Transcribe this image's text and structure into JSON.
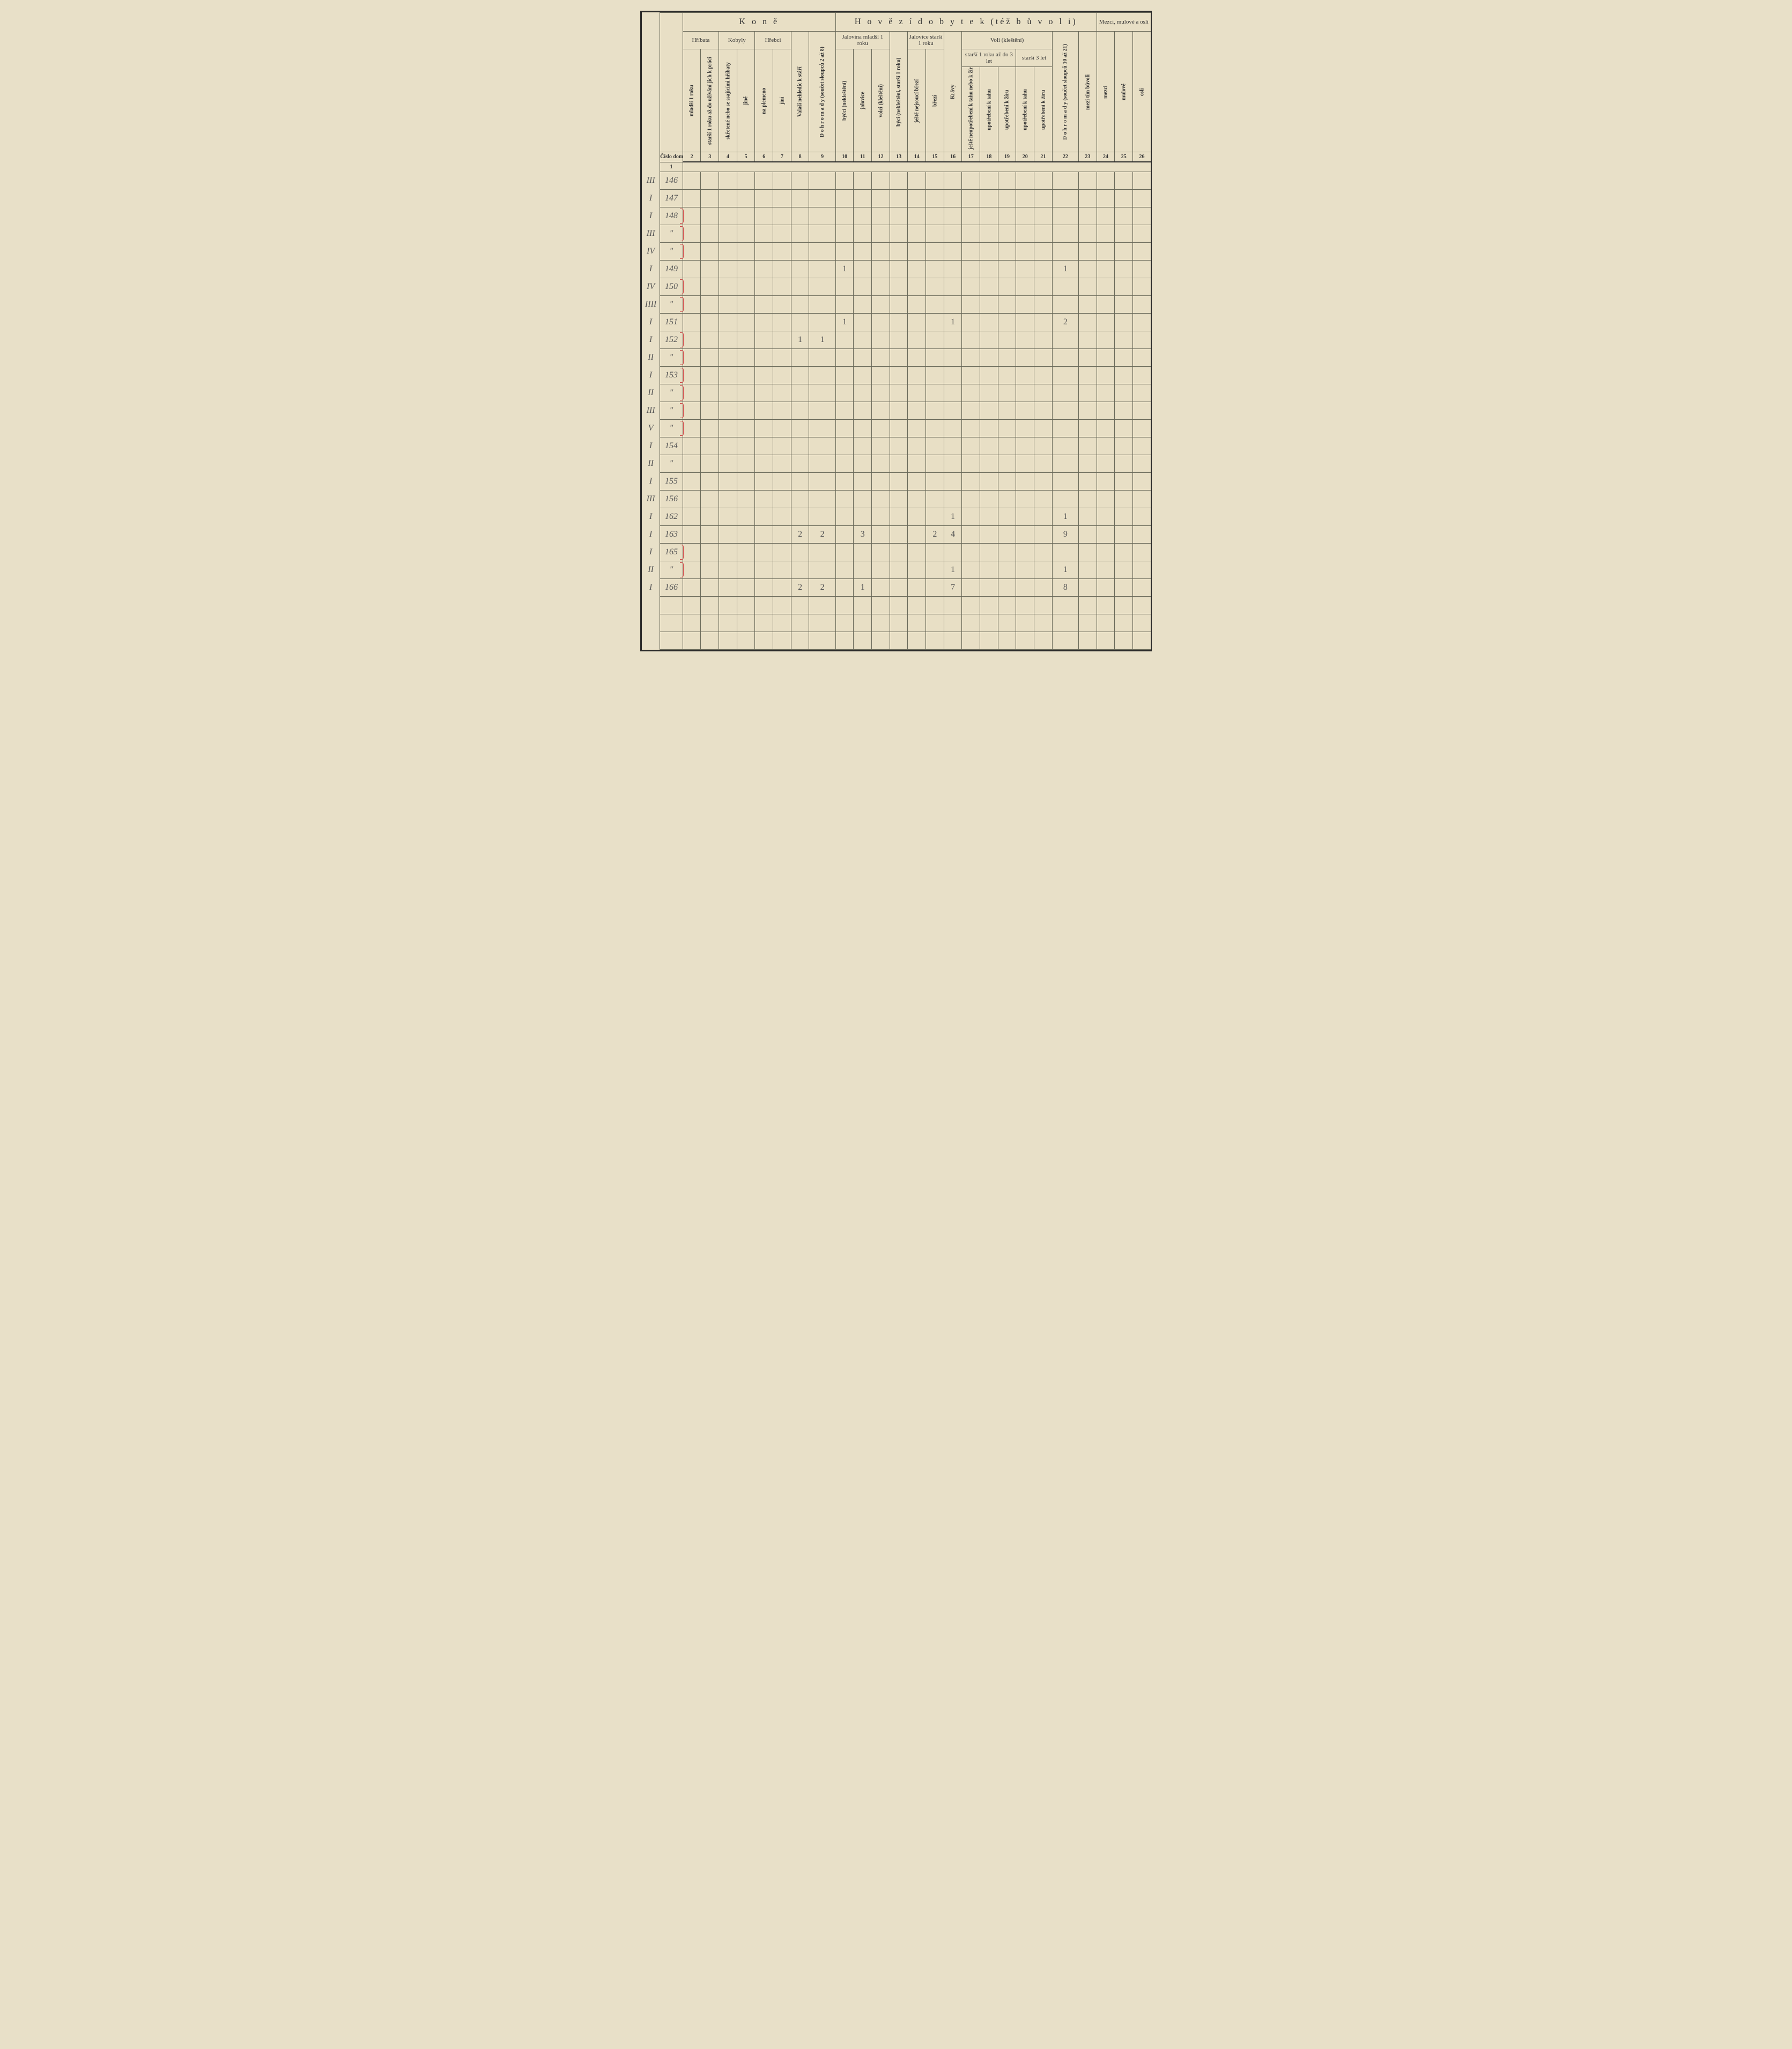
{
  "headers": {
    "section_kone": "K o n ě",
    "section_hovezi": "H o v ě z í   d o b y t e k   (též  b ů v o l i)",
    "section_mezci": "Mezci, mulové a osli",
    "hribata": "Hříbata",
    "kobyly": "Kobyly",
    "hrebci": "Hřebci",
    "jalovina": "Jalovina mladší 1 roku",
    "jalovice": "Jalovice starší 1 roku",
    "voli": "Voli (kleštění)",
    "voli_1_3": "starší 1 roku až do 3 let",
    "voli_3": "starší 3 let"
  },
  "col_labels": {
    "c1": "Číslo domu",
    "c2": "mladší 1 roku",
    "c3": "starší 1 roku až do užívání jich k práci",
    "c4": "skřetené nebo se ssajícími hříbaty",
    "c5": "jiné",
    "c6": "na plemeno",
    "c7": "jiní",
    "c8": "Valaši nehledíc k stáří",
    "c9": "D o h r o m a d y (součet sloupců 2 až 8)",
    "c10": "býčci (nekleštění)",
    "c11": "jalovice",
    "c12": "volci (kleštění)",
    "c13": "býci (nekleštění, starší 1 roku)",
    "c14": "ještě nejsoucí březí",
    "c15": "březí",
    "c16": "Krávy",
    "c17": "ještě neupotřebení k tahu nebo k žíru",
    "c18": "upotřebení k tahu",
    "c19": "upotřebení k žíru",
    "c20": "upotřebení k tahu",
    "c21": "upotřebení k žíru",
    "c22": "D o h r o m a d y (součet sloupců 10 až 21)",
    "c23": "mezi tím bůvoli",
    "c24": "mezci",
    "c25": "mulové",
    "c26": "osli"
  },
  "col_numbers": [
    "1",
    "2",
    "3",
    "4",
    "5",
    "6",
    "7",
    "8",
    "9",
    "10",
    "11",
    "12",
    "13",
    "14",
    "15",
    "16",
    "17",
    "18",
    "19",
    "20",
    "21",
    "22",
    "23",
    "24",
    "25",
    "26"
  ],
  "rows": [
    {
      "m": "III",
      "h": "146",
      "red": true
    },
    {
      "m": "I",
      "h": "147"
    },
    {
      "m": "I",
      "h": "148",
      "brace": true
    },
    {
      "m": "III",
      "h": "\"",
      "brace": true
    },
    {
      "m": "IV",
      "h": "\"",
      "brace": true
    },
    {
      "m": "I",
      "h": "149",
      "c10": "1",
      "c22": "1"
    },
    {
      "m": "IV",
      "h": "150",
      "brace": true
    },
    {
      "m": "IIII",
      "h": "\"",
      "brace": true
    },
    {
      "m": "I",
      "h": "151",
      "c10": "1",
      "c16": "1",
      "c22": "2"
    },
    {
      "m": "I",
      "h": "152",
      "c8": "1",
      "c9": "1",
      "brace": true
    },
    {
      "m": "II",
      "h": "\"",
      "brace": true
    },
    {
      "m": "I",
      "h": "153",
      "brace": true
    },
    {
      "m": "II",
      "h": "\"",
      "brace": true
    },
    {
      "m": "III",
      "h": "\"",
      "brace": true
    },
    {
      "m": "V",
      "h": "\"",
      "brace": true
    },
    {
      "m": "I",
      "h": "154",
      "red": true
    },
    {
      "m": "II",
      "h": "\""
    },
    {
      "m": "I",
      "h": "155"
    },
    {
      "m": "III",
      "h": "156"
    },
    {
      "m": "I",
      "h": "162",
      "c16": "1",
      "c22": "1"
    },
    {
      "m": "I",
      "h": "163",
      "c8": "2",
      "c9": "2",
      "c11": "3",
      "c15": "2",
      "c16": "4",
      "c22": "9"
    },
    {
      "m": "I",
      "h": "165",
      "brace": true
    },
    {
      "m": "II",
      "h": "\"",
      "c16": "1",
      "c22": "1",
      "brace": true
    },
    {
      "m": "I",
      "h": "166",
      "c8": "2",
      "c9": "2",
      "c11": "1",
      "c16": "7",
      "c22": "8"
    }
  ],
  "colors": {
    "paper": "#e8dfc5",
    "ink": "#333333",
    "pencil": "#666660",
    "red": "#c44444",
    "grid": "#6a6a5a"
  }
}
